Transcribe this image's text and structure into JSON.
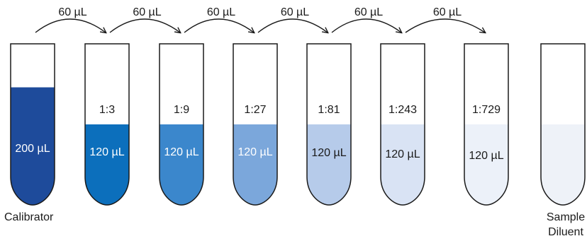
{
  "transfers": [
    {
      "label": "60 µL"
    },
    {
      "label": "60 µL"
    },
    {
      "label": "60 µL"
    },
    {
      "label": "60 µL"
    },
    {
      "label": "60 µL"
    },
    {
      "label": "60 µL"
    }
  ],
  "tubes": [
    {
      "name": "calibrator",
      "ratio": "",
      "volume": "200 µL",
      "fill": "#1e4b9b",
      "text_color": "#ffffff",
      "fill_level": 0.73,
      "caption": [
        "Calibrator"
      ]
    },
    {
      "name": "dilution-1-3",
      "ratio": "1:3",
      "volume": "120 µL",
      "fill": "#0c6fbc",
      "text_color": "#ffffff",
      "fill_level": 0.5,
      "caption": []
    },
    {
      "name": "dilution-1-9",
      "ratio": "1:9",
      "volume": "120 µL",
      "fill": "#3b87cc",
      "text_color": "#ffffff",
      "fill_level": 0.5,
      "caption": []
    },
    {
      "name": "dilution-1-27",
      "ratio": "1:27",
      "volume": "120 µL",
      "fill": "#7ba7db",
      "text_color": "#ffffff",
      "fill_level": 0.5,
      "caption": []
    },
    {
      "name": "dilution-1-81",
      "ratio": "1:81",
      "volume": "120 µL",
      "fill": "#b6cbea",
      "text_color": "#1a1a1a",
      "fill_level": 0.5,
      "caption": []
    },
    {
      "name": "dilution-1-243",
      "ratio": "1:243",
      "volume": "120 µL",
      "fill": "#d9e3f4",
      "text_color": "#1a1a1a",
      "fill_level": 0.5,
      "caption": []
    },
    {
      "name": "dilution-1-729",
      "ratio": "1:729",
      "volume": "120 µL",
      "fill": "#ecf1f9",
      "text_color": "#1a1a1a",
      "fill_level": 0.5,
      "caption": []
    },
    {
      "name": "sample-diluent",
      "ratio": "",
      "volume": "",
      "fill": "#eef2f8",
      "text_color": "#1a1a1a",
      "fill_level": 0.5,
      "caption": [
        "Sample",
        "Diluent"
      ]
    }
  ]
}
